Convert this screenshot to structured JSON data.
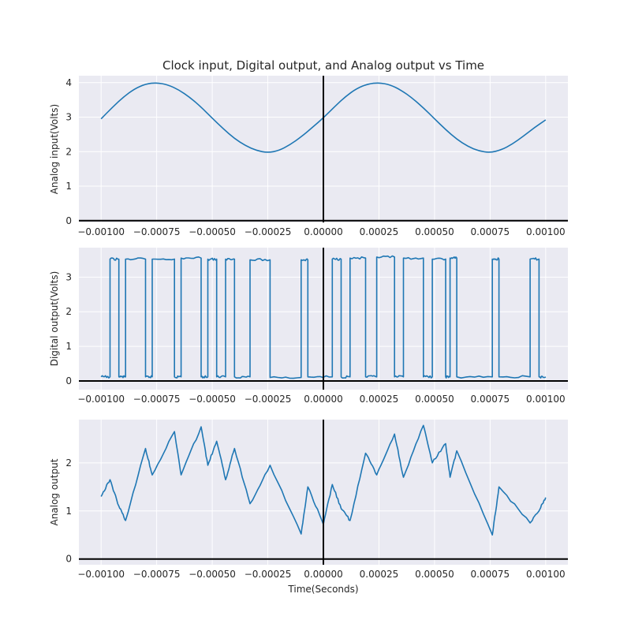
{
  "figure": {
    "title": "Clock input, Digital output, and Analog output vs Time",
    "xlabel": "Time(Seconds)"
  },
  "colors": {
    "series": "#1f77b4",
    "background": "#eaeaf2",
    "grid": "#ffffff",
    "reference": "#000000"
  },
  "chart_data": [
    {
      "type": "line",
      "ylabel": "Analog input(Volts)",
      "xlim": [
        -0.0011,
        0.0011
      ],
      "ylim": [
        -0.05,
        4.2
      ],
      "xticks": [
        -0.001,
        -0.00075,
        -0.0005,
        -0.00025,
        0,
        0.00025,
        0.0005,
        0.00075,
        0.001
      ],
      "xtick_labels": [
        "−0.00100",
        "−0.00075",
        "−0.00050",
        "−0.00025",
        "0.00000",
        "0.00025",
        "0.00050",
        "0.00075",
        "0.00100"
      ],
      "yticks": [
        0,
        1,
        2,
        3,
        4
      ],
      "ytick_labels": [
        "0",
        "1",
        "2",
        "3",
        "4"
      ],
      "grid": true,
      "series": [
        {
          "x": [
            -0.001,
            -0.00095,
            -0.0009,
            -0.00085,
            -0.0008,
            -0.00075,
            -0.0007,
            -0.00065,
            -0.0006,
            -0.00055,
            -0.0005,
            -0.00045,
            -0.0004,
            -0.00035,
            -0.0003,
            -0.00025,
            -0.0002,
            -0.00015,
            -0.0001,
            -5e-05,
            0,
            5e-05,
            0.0001,
            0.00015,
            0.0002,
            0.00025,
            0.0003,
            0.00035,
            0.0004,
            0.00045,
            0.0005,
            0.00055,
            0.0006,
            0.00065,
            0.0007,
            0.00075,
            0.0008,
            0.00085,
            0.0009,
            0.00095,
            0.001
          ],
          "y": [
            2.95,
            3.28,
            3.58,
            3.82,
            3.96,
            4.0,
            3.94,
            3.79,
            3.57,
            3.29,
            2.97,
            2.66,
            2.38,
            2.17,
            2.03,
            1.97,
            2.03,
            2.2,
            2.43,
            2.7,
            2.98,
            3.3,
            3.6,
            3.83,
            3.96,
            4.0,
            3.94,
            3.78,
            3.55,
            3.27,
            2.95,
            2.64,
            2.36,
            2.15,
            2.02,
            1.97,
            2.05,
            2.22,
            2.45,
            2.7,
            2.92
          ]
        }
      ]
    },
    {
      "type": "line",
      "ylabel": "Digital output(Volts)",
      "xlim": [
        -0.0011,
        0.0011
      ],
      "ylim": [
        -0.25,
        3.85
      ],
      "xticks": [
        -0.001,
        -0.00075,
        -0.0005,
        -0.00025,
        0,
        0.00025,
        0.0005,
        0.00075,
        0.001
      ],
      "xtick_labels": [
        "−0.00100",
        "−0.00075",
        "−0.00050",
        "−0.00025",
        "0.00000",
        "0.00025",
        "0.00050",
        "0.00075",
        "0.00100"
      ],
      "yticks": [
        0,
        1,
        2,
        3
      ],
      "ytick_labels": [
        "0",
        "1",
        "2",
        "3"
      ],
      "grid": true,
      "series": [
        {
          "x": [
            -0.001,
            -0.00096,
            -0.00096,
            -0.00092,
            -0.00092,
            -0.00089,
            -0.00089,
            -0.0008,
            -0.0008,
            -0.00077,
            -0.00077,
            -0.00067,
            -0.00067,
            -0.00064,
            -0.00064,
            -0.00055,
            -0.00055,
            -0.00052,
            -0.00052,
            -0.00048,
            -0.00048,
            -0.00044,
            -0.00044,
            -0.0004,
            -0.0004,
            -0.00033,
            -0.00033,
            -0.00024,
            -0.00024,
            -0.0001,
            -0.0001,
            -7e-05,
            -7e-05,
            4e-05,
            4e-05,
            8e-05,
            8e-05,
            0.00012,
            0.00012,
            0.00019,
            0.00019,
            0.00024,
            0.00024,
            0.00032,
            0.00032,
            0.00036,
            0.00036,
            0.00045,
            0.00045,
            0.00049,
            0.00049,
            0.00055,
            0.00055,
            0.00057,
            0.00057,
            0.0006,
            0.0006,
            0.00076,
            0.00076,
            0.00079,
            0.00079,
            0.00093,
            0.00093,
            0.00097,
            0.00097,
            0.001
          ],
          "y": [
            0.12,
            0.12,
            3.52,
            3.52,
            0.12,
            0.12,
            3.52,
            3.52,
            0.12,
            0.12,
            3.52,
            3.52,
            0.12,
            0.12,
            3.55,
            3.55,
            0.12,
            0.12,
            3.52,
            3.52,
            0.12,
            0.12,
            3.52,
            3.52,
            0.12,
            0.12,
            3.5,
            3.5,
            0.1,
            0.1,
            3.5,
            3.5,
            0.12,
            0.12,
            3.52,
            3.52,
            0.12,
            0.12,
            3.55,
            3.55,
            0.12,
            0.12,
            3.58,
            3.58,
            0.12,
            0.12,
            3.55,
            3.55,
            0.12,
            0.12,
            3.52,
            3.52,
            0.12,
            0.12,
            3.55,
            3.55,
            0.12,
            0.12,
            3.52,
            3.52,
            0.12,
            0.12,
            3.52,
            3.52,
            0.12,
            0.12
          ]
        }
      ]
    },
    {
      "type": "line",
      "ylabel": "Analog output",
      "xlim": [
        -0.0011,
        0.0011
      ],
      "ylim": [
        -0.12,
        2.9
      ],
      "xticks": [
        -0.001,
        -0.00075,
        -0.0005,
        -0.00025,
        0,
        0.00025,
        0.0005,
        0.00075,
        0.001
      ],
      "xtick_labels": [
        "−0.00100",
        "−0.00075",
        "−0.00050",
        "−0.00025",
        "0.00000",
        "0.00025",
        "0.00050",
        "0.00075",
        "0.00100"
      ],
      "yticks": [
        0,
        1,
        2
      ],
      "ytick_labels": [
        "0",
        "1",
        "2"
      ],
      "grid": true,
      "series": [
        {
          "x": [
            -0.001,
            -0.00096,
            -0.00092,
            -0.00089,
            -0.0008,
            -0.00077,
            -0.00067,
            -0.00064,
            -0.00055,
            -0.00052,
            -0.00048,
            -0.00044,
            -0.0004,
            -0.00033,
            -0.00024,
            -0.0001,
            -7e-05,
            0,
            4e-05,
            8e-05,
            0.00012,
            0.00019,
            0.00024,
            0.00032,
            0.00036,
            0.00045,
            0.00049,
            0.00055,
            0.00057,
            0.0006,
            0.00076,
            0.00079,
            0.00093,
            0.00097,
            0.001
          ],
          "y": [
            1.3,
            1.65,
            1.1,
            0.8,
            2.3,
            1.75,
            2.65,
            1.75,
            2.75,
            1.95,
            2.45,
            1.65,
            2.3,
            1.15,
            1.95,
            0.52,
            1.5,
            0.72,
            1.55,
            1.05,
            0.8,
            2.2,
            1.75,
            2.6,
            1.7,
            2.78,
            2.0,
            2.4,
            1.7,
            2.25,
            0.5,
            1.5,
            0.75,
            1.0,
            1.28
          ]
        }
      ]
    }
  ]
}
